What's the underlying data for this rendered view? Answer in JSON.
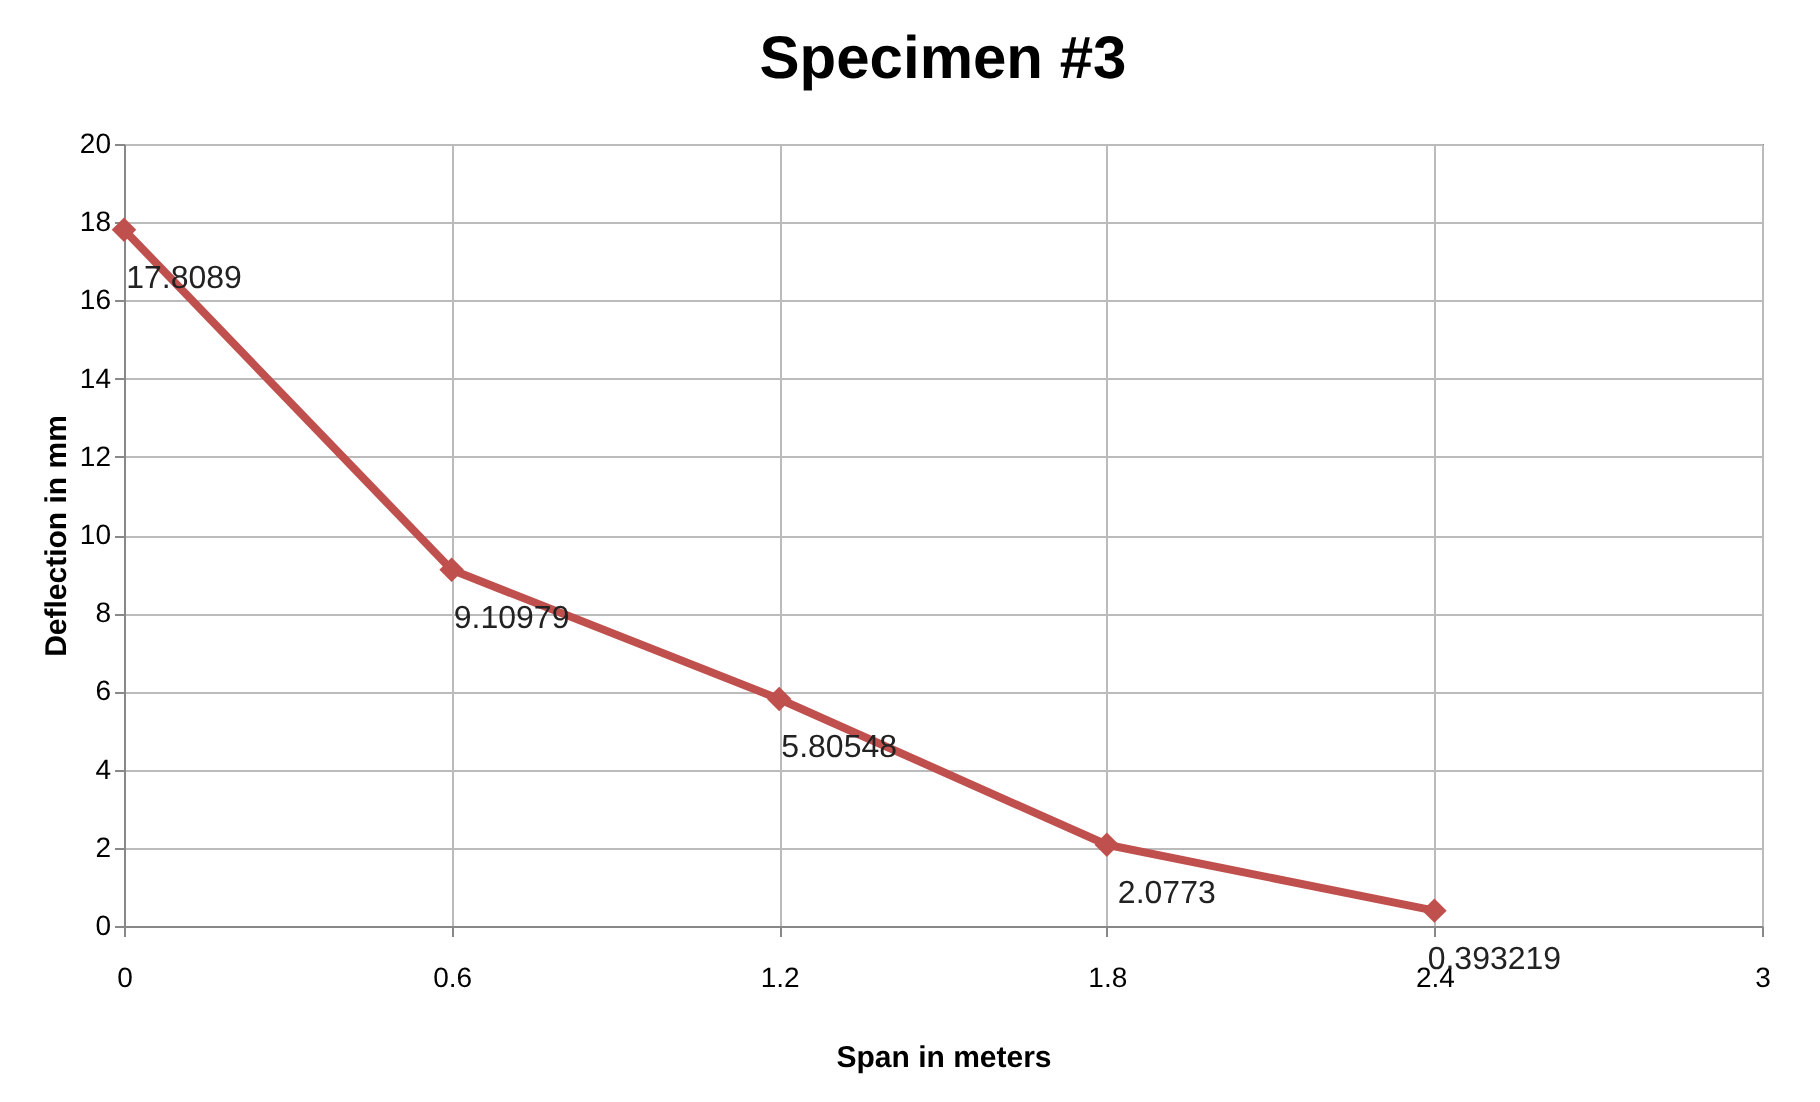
{
  "chart_data": {
    "type": "line",
    "title": "Specimen #3",
    "xlabel": "Span in meters",
    "ylabel": "Deflection in mm",
    "x": [
      0,
      0.6,
      1.2,
      1.8,
      2.4
    ],
    "series": [
      {
        "color": "#c0504d",
        "values": [
          17.8089,
          9.10979,
          5.80548,
          2.0773,
          0.393219
        ]
      }
    ],
    "xlim": [
      0,
      3
    ],
    "xticks": [
      0,
      0.6,
      1.2,
      1.8,
      2.4,
      3
    ],
    "ylim": [
      0,
      20
    ],
    "yticks": [
      0,
      2,
      4,
      6,
      8,
      10,
      12,
      14,
      16,
      18,
      20
    ],
    "grid": true,
    "marker": "diamond",
    "line_style": "solid",
    "data_labels": true
  }
}
